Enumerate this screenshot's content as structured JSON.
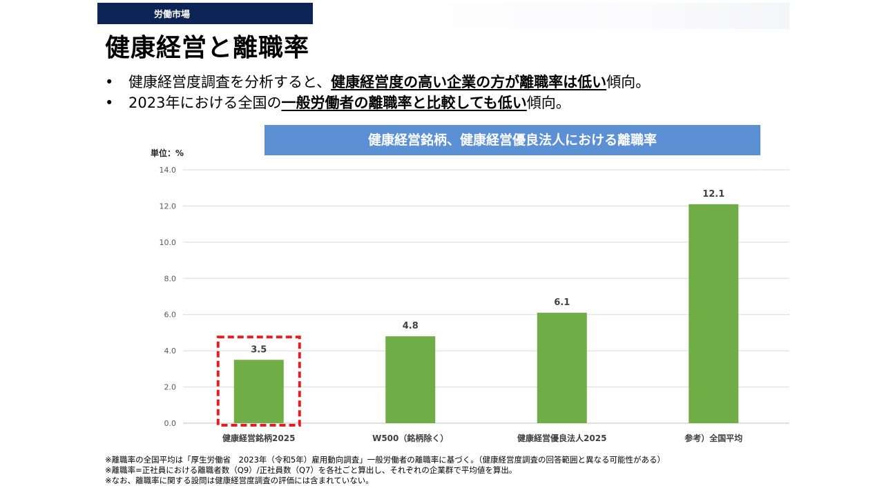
{
  "header": {
    "section_label": "労働市場",
    "title": "健康経営と離職率"
  },
  "bullets": [
    {
      "pre": "健康経営度調査を分析すると、",
      "bold": "健康経営度の高い企業の方が離職率は低い",
      "post": "傾向。"
    },
    {
      "pre": "2023年における全国の",
      "bold": "一般労働者の離職率と比較しても低い",
      "post": "傾向。"
    }
  ],
  "bullet_symbol": "•",
  "chart_data": {
    "type": "bar",
    "title": "健康経営銘柄、健康経営優良法人における離職率",
    "unit_label": "単位：%",
    "categories": [
      "健康経営銘柄2025",
      "W500（銘柄除く）",
      "健康経営優良法人2025",
      "参考）全国平均"
    ],
    "values": [
      3.5,
      4.8,
      6.1,
      12.1
    ],
    "value_labels": [
      "3.5",
      "4.8",
      "6.1",
      "12.1"
    ],
    "ylim": [
      0,
      14
    ],
    "yticks": [
      0,
      2,
      4,
      6,
      8,
      10,
      12,
      14
    ],
    "ytick_labels": [
      "0.0",
      "2.0",
      "4.0",
      "6.0",
      "8.0",
      "10.0",
      "12.0",
      "14.0"
    ],
    "bar_color": "#70ad47",
    "highlight_index": 0,
    "highlight_color": "#e02020",
    "grid": true
  },
  "colors": {
    "tag_bg": "#0d2457",
    "banner_bg": "#5b90d4"
  },
  "footnotes": [
    "※離職率の全国平均は「厚生労働省　2023年（令和5年）雇用動向調査」一般労働者の離職率に基づく。（健康経営度調査の回答範囲と異なる可能性がある）",
    "※離職率=正社員における離職者数（Q9）/正社員数（Q7）を各社ごと算出し、それぞれの企業群で平均値を算出。",
    "※なお、離職率に関する設問は健康経営度調査の評価には含まれていない。"
  ]
}
